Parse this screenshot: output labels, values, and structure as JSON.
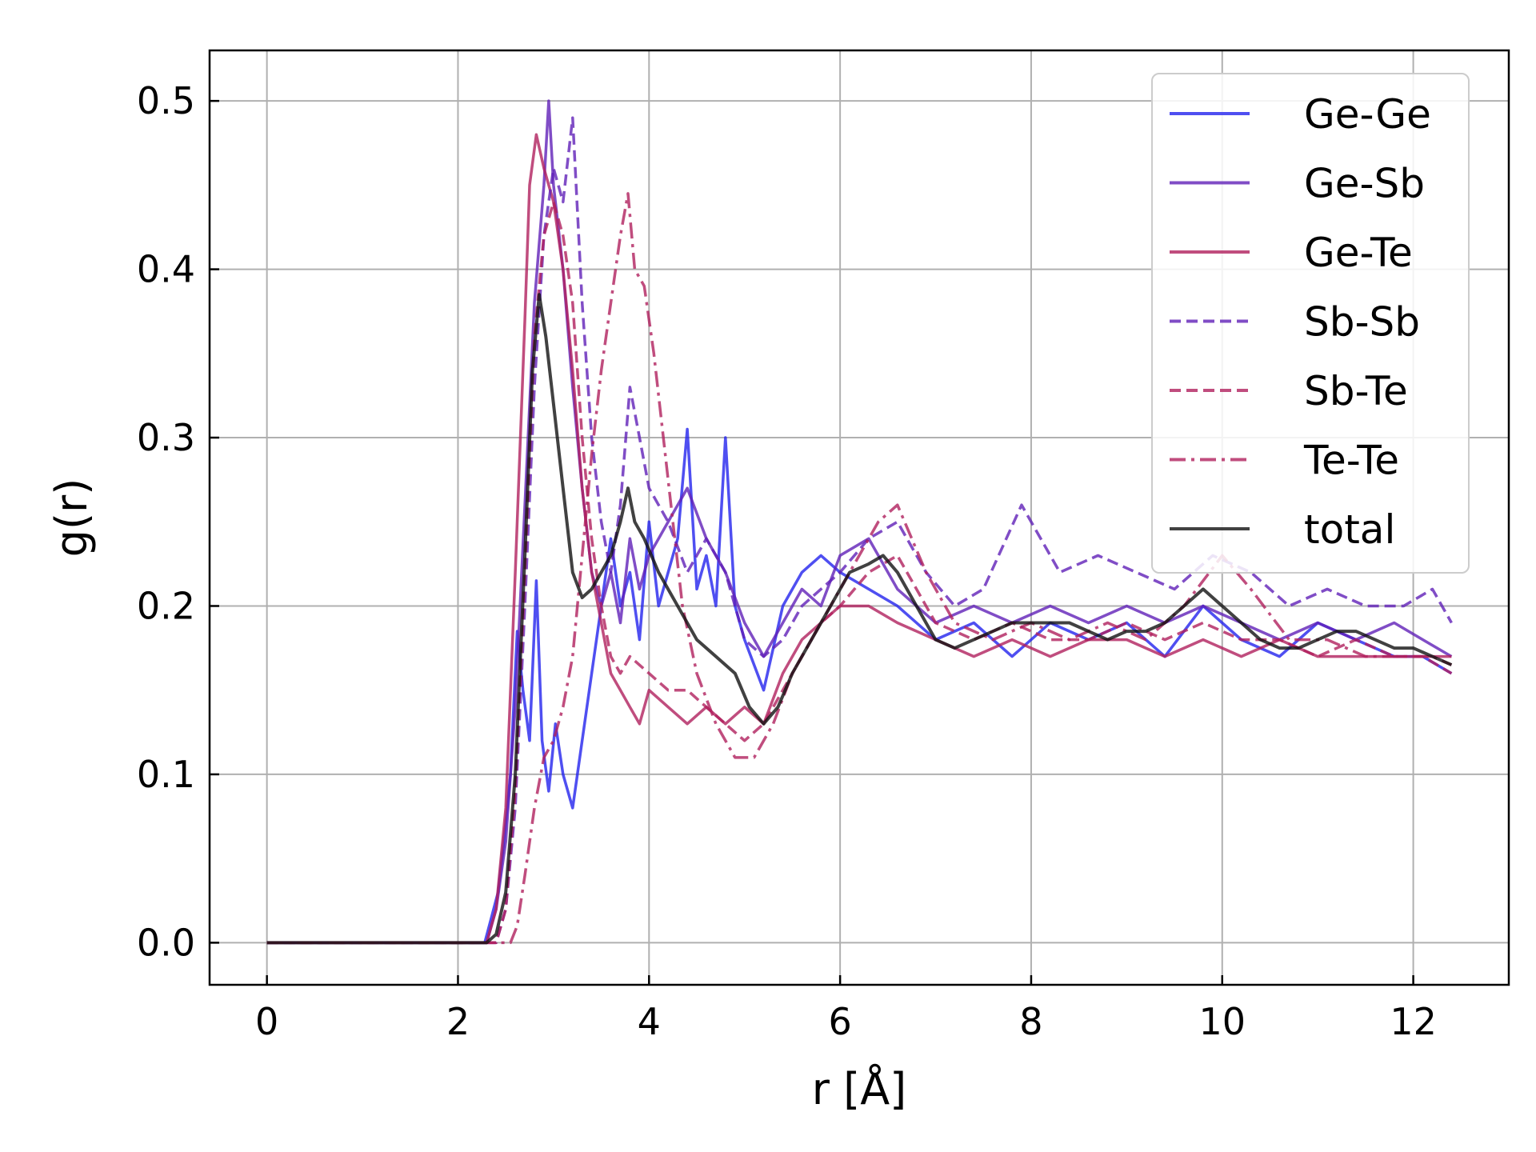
{
  "chart_data": {
    "type": "line",
    "title": "",
    "xlabel": "r [Å]",
    "ylabel": "g(r)",
    "xlim": [
      -0.6,
      13.0
    ],
    "ylim": [
      -0.025,
      0.53
    ],
    "xticks": [
      0,
      2,
      4,
      6,
      8,
      10,
      12
    ],
    "xtick_labels": [
      "0",
      "2",
      "4",
      "6",
      "8",
      "10",
      "12"
    ],
    "yticks": [
      0.0,
      0.1,
      0.2,
      0.3,
      0.4,
      0.5
    ],
    "ytick_labels": [
      "0.0",
      "0.1",
      "0.2",
      "0.3",
      "0.4",
      "0.5"
    ],
    "grid": true,
    "legend_position": "top-right",
    "series": [
      {
        "name": "Ge-Ge",
        "color": "#2323ee",
        "dash": "solid",
        "x": [
          0.0,
          2.28,
          2.35,
          2.42,
          2.48,
          2.55,
          2.62,
          2.68,
          2.75,
          2.82,
          2.88,
          2.95,
          3.02,
          3.1,
          3.2,
          3.3,
          3.4,
          3.5,
          3.6,
          3.7,
          3.8,
          3.9,
          4.0,
          4.1,
          4.2,
          4.3,
          4.4,
          4.5,
          4.6,
          4.7,
          4.8,
          4.9,
          5.0,
          5.2,
          5.4,
          5.6,
          5.8,
          6.0,
          6.3,
          6.6,
          7.0,
          7.4,
          7.8,
          8.2,
          8.6,
          9.0,
          9.4,
          9.8,
          10.2,
          10.6,
          11.0,
          11.4,
          11.8,
          12.1,
          12.4
        ],
        "y": [
          0.0,
          0.0,
          0.015,
          0.03,
          0.06,
          0.1,
          0.185,
          0.15,
          0.12,
          0.215,
          0.12,
          0.09,
          0.13,
          0.1,
          0.08,
          0.12,
          0.16,
          0.2,
          0.24,
          0.2,
          0.22,
          0.18,
          0.25,
          0.2,
          0.22,
          0.24,
          0.305,
          0.21,
          0.23,
          0.2,
          0.3,
          0.2,
          0.18,
          0.15,
          0.2,
          0.22,
          0.23,
          0.22,
          0.21,
          0.2,
          0.18,
          0.19,
          0.17,
          0.19,
          0.18,
          0.19,
          0.17,
          0.2,
          0.18,
          0.17,
          0.19,
          0.18,
          0.17,
          0.17,
          0.16
        ]
      },
      {
        "name": "Ge-Sb",
        "color": "#6020b8",
        "dash": "solid",
        "x": [
          0.0,
          2.3,
          2.4,
          2.5,
          2.6,
          2.7,
          2.8,
          2.9,
          2.95,
          3.0,
          3.1,
          3.2,
          3.3,
          3.4,
          3.5,
          3.6,
          3.7,
          3.8,
          3.9,
          4.0,
          4.2,
          4.4,
          4.6,
          4.8,
          5.0,
          5.2,
          5.4,
          5.6,
          5.8,
          6.0,
          6.3,
          6.6,
          7.0,
          7.4,
          7.8,
          8.2,
          8.6,
          9.0,
          9.4,
          9.8,
          10.2,
          10.6,
          11.0,
          11.4,
          11.8,
          12.1,
          12.4
        ],
        "y": [
          0.0,
          0.0,
          0.02,
          0.06,
          0.14,
          0.26,
          0.38,
          0.45,
          0.5,
          0.45,
          0.4,
          0.33,
          0.27,
          0.22,
          0.2,
          0.22,
          0.19,
          0.24,
          0.21,
          0.23,
          0.25,
          0.27,
          0.24,
          0.22,
          0.19,
          0.17,
          0.19,
          0.21,
          0.2,
          0.23,
          0.24,
          0.21,
          0.19,
          0.2,
          0.19,
          0.2,
          0.19,
          0.2,
          0.19,
          0.2,
          0.19,
          0.18,
          0.19,
          0.18,
          0.19,
          0.18,
          0.17
        ]
      },
      {
        "name": "Ge-Te",
        "color": "#b0205e",
        "dash": "solid",
        "x": [
          0.0,
          2.3,
          2.4,
          2.5,
          2.6,
          2.7,
          2.75,
          2.82,
          2.9,
          3.0,
          3.1,
          3.2,
          3.3,
          3.4,
          3.5,
          3.6,
          3.7,
          3.8,
          3.9,
          4.0,
          4.2,
          4.4,
          4.6,
          4.8,
          5.0,
          5.2,
          5.4,
          5.6,
          5.8,
          6.0,
          6.3,
          6.6,
          7.0,
          7.4,
          7.8,
          8.2,
          8.6,
          9.0,
          9.4,
          9.8,
          10.2,
          10.6,
          11.0,
          11.4,
          11.8,
          12.1,
          12.4
        ],
        "y": [
          0.0,
          0.0,
          0.02,
          0.08,
          0.22,
          0.37,
          0.45,
          0.48,
          0.46,
          0.44,
          0.4,
          0.34,
          0.27,
          0.22,
          0.19,
          0.16,
          0.15,
          0.14,
          0.13,
          0.15,
          0.14,
          0.13,
          0.14,
          0.13,
          0.14,
          0.13,
          0.16,
          0.18,
          0.19,
          0.2,
          0.2,
          0.19,
          0.18,
          0.17,
          0.18,
          0.17,
          0.18,
          0.18,
          0.17,
          0.18,
          0.17,
          0.18,
          0.17,
          0.17,
          0.17,
          0.17,
          0.17
        ]
      },
      {
        "name": "Sb-Sb",
        "color": "#6020b8",
        "dash": "dashed",
        "x": [
          0.0,
          2.4,
          2.5,
          2.6,
          2.7,
          2.8,
          2.9,
          3.0,
          3.1,
          3.2,
          3.3,
          3.4,
          3.5,
          3.6,
          3.7,
          3.8,
          3.9,
          4.0,
          4.2,
          4.4,
          4.6,
          4.8,
          5.0,
          5.2,
          5.4,
          5.6,
          5.8,
          6.0,
          6.3,
          6.6,
          6.9,
          7.2,
          7.5,
          7.9,
          8.3,
          8.7,
          9.1,
          9.5,
          9.9,
          10.3,
          10.7,
          11.1,
          11.5,
          11.9,
          12.2,
          12.4
        ],
        "y": [
          0.0,
          0.0,
          0.02,
          0.08,
          0.2,
          0.33,
          0.42,
          0.46,
          0.44,
          0.49,
          0.38,
          0.3,
          0.25,
          0.22,
          0.26,
          0.33,
          0.3,
          0.27,
          0.25,
          0.22,
          0.24,
          0.22,
          0.18,
          0.17,
          0.18,
          0.2,
          0.21,
          0.22,
          0.24,
          0.25,
          0.22,
          0.2,
          0.21,
          0.26,
          0.22,
          0.23,
          0.22,
          0.21,
          0.23,
          0.22,
          0.2,
          0.21,
          0.2,
          0.2,
          0.21,
          0.19
        ]
      },
      {
        "name": "Sb-Te",
        "color": "#b0205e",
        "dash": "dashed",
        "x": [
          0.0,
          2.4,
          2.5,
          2.6,
          2.7,
          2.8,
          2.9,
          3.0,
          3.1,
          3.2,
          3.3,
          3.4,
          3.5,
          3.6,
          3.7,
          3.8,
          4.0,
          4.2,
          4.4,
          4.6,
          4.8,
          5.0,
          5.2,
          5.4,
          5.6,
          5.8,
          6.0,
          6.3,
          6.6,
          7.0,
          7.4,
          7.8,
          8.2,
          8.6,
          9.0,
          9.4,
          9.8,
          10.2,
          10.6,
          11.0,
          11.4,
          11.8,
          12.1,
          12.4
        ],
        "y": [
          0.0,
          0.0,
          0.02,
          0.09,
          0.22,
          0.36,
          0.42,
          0.44,
          0.42,
          0.38,
          0.3,
          0.24,
          0.2,
          0.17,
          0.16,
          0.17,
          0.16,
          0.15,
          0.15,
          0.14,
          0.13,
          0.12,
          0.13,
          0.15,
          0.17,
          0.19,
          0.2,
          0.22,
          0.23,
          0.19,
          0.18,
          0.19,
          0.18,
          0.18,
          0.19,
          0.18,
          0.19,
          0.18,
          0.18,
          0.17,
          0.18,
          0.17,
          0.17,
          0.16
        ]
      },
      {
        "name": "Te-Te",
        "color": "#b0205e",
        "dash": "dashdot",
        "x": [
          0.0,
          2.55,
          2.62,
          2.7,
          2.8,
          2.9,
          3.0,
          3.1,
          3.2,
          3.3,
          3.4,
          3.5,
          3.6,
          3.7,
          3.78,
          3.85,
          3.95,
          4.05,
          4.15,
          4.25,
          4.35,
          4.5,
          4.7,
          4.9,
          5.1,
          5.3,
          5.5,
          5.8,
          6.1,
          6.4,
          6.6,
          6.9,
          7.2,
          7.6,
          8.0,
          8.4,
          8.8,
          9.2,
          9.6,
          10.0,
          10.3,
          10.7,
          11.1,
          11.5,
          11.9,
          12.2,
          12.4
        ],
        "y": [
          0.0,
          0.0,
          0.01,
          0.04,
          0.08,
          0.11,
          0.12,
          0.14,
          0.17,
          0.23,
          0.29,
          0.34,
          0.38,
          0.42,
          0.445,
          0.4,
          0.39,
          0.35,
          0.3,
          0.25,
          0.2,
          0.16,
          0.13,
          0.11,
          0.11,
          0.13,
          0.16,
          0.19,
          0.22,
          0.25,
          0.26,
          0.22,
          0.19,
          0.18,
          0.19,
          0.18,
          0.19,
          0.18,
          0.2,
          0.23,
          0.21,
          0.18,
          0.18,
          0.17,
          0.17,
          0.17,
          0.165
        ]
      },
      {
        "name": "total",
        "color": "#111111",
        "dash": "solid",
        "x": [
          0.0,
          2.3,
          2.4,
          2.5,
          2.6,
          2.7,
          2.78,
          2.85,
          2.92,
          3.0,
          3.1,
          3.2,
          3.3,
          3.4,
          3.5,
          3.6,
          3.7,
          3.78,
          3.85,
          3.95,
          4.1,
          4.3,
          4.5,
          4.7,
          4.9,
          5.05,
          5.2,
          5.35,
          5.5,
          5.7,
          5.9,
          6.1,
          6.3,
          6.45,
          6.6,
          6.8,
          7.0,
          7.2,
          7.4,
          7.6,
          7.8,
          8.0,
          8.2,
          8.4,
          8.6,
          8.8,
          9.0,
          9.2,
          9.4,
          9.6,
          9.8,
          10.0,
          10.2,
          10.4,
          10.6,
          10.8,
          11.0,
          11.2,
          11.4,
          11.6,
          11.8,
          12.0,
          12.2,
          12.4
        ],
        "y": [
          0.0,
          0.0,
          0.005,
          0.03,
          0.1,
          0.23,
          0.34,
          0.385,
          0.36,
          0.32,
          0.27,
          0.22,
          0.205,
          0.21,
          0.22,
          0.23,
          0.25,
          0.27,
          0.25,
          0.24,
          0.22,
          0.2,
          0.18,
          0.17,
          0.16,
          0.14,
          0.13,
          0.14,
          0.16,
          0.18,
          0.2,
          0.22,
          0.225,
          0.23,
          0.22,
          0.2,
          0.18,
          0.175,
          0.18,
          0.185,
          0.19,
          0.19,
          0.19,
          0.19,
          0.185,
          0.18,
          0.185,
          0.185,
          0.19,
          0.2,
          0.21,
          0.2,
          0.19,
          0.18,
          0.175,
          0.175,
          0.18,
          0.185,
          0.185,
          0.18,
          0.175,
          0.175,
          0.17,
          0.165
        ]
      }
    ]
  }
}
